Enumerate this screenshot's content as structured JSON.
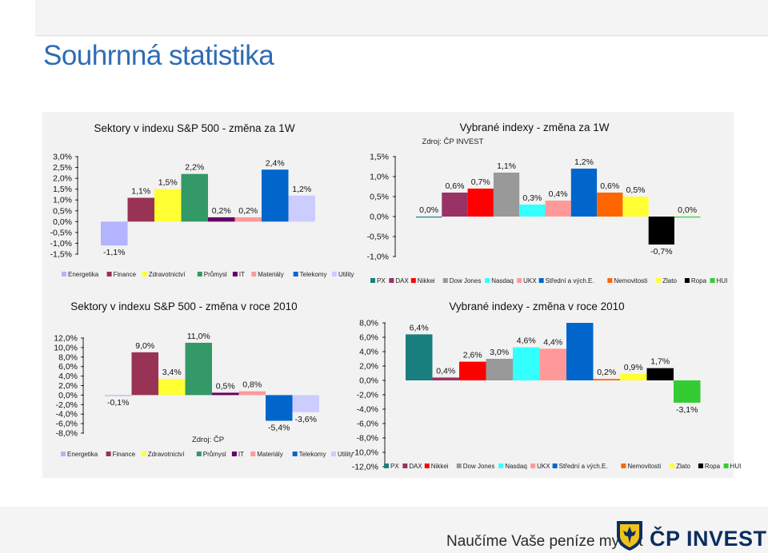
{
  "page": {
    "title": "Souhrnná statistika"
  },
  "footer": {
    "slogan": "Naučíme Vaše peníze myslet",
    "brand": "ČP INVEST"
  },
  "colors": {
    "title": "#2d6db5",
    "sectors": [
      "#b3b3ff",
      "#993355",
      "#ffff33",
      "#339966",
      "#660066",
      "#ff9999",
      "#0066cc",
      "#ccccff"
    ],
    "indices": [
      "#1a7f7f",
      "#993366",
      "#ff0000",
      "#999999",
      "#33ffff",
      "#ff9999",
      "#0066cc",
      "#ff6600",
      "#ffff33",
      "#000000",
      "#33cc33"
    ]
  },
  "chart_data": [
    {
      "id": "chart-sp500-week",
      "type": "bar",
      "title": "Sektory v indexu S&P 500 - změna za 1W",
      "subtitle": "",
      "categories": [
        "Energetika",
        "Finance",
        "Zdravotnictví",
        "Průmysl",
        "IT",
        "Materiály",
        "Telekomy",
        "Utility"
      ],
      "values": [
        -1.1,
        1.1,
        1.5,
        2.2,
        0.2,
        0.2,
        2.4,
        1.2
      ],
      "value_labels": [
        "-1,1%",
        "1,1%",
        "1,5%",
        "2,2%",
        "0,2%",
        "0,2%",
        "2,4%",
        "1,2%"
      ],
      "ylim": [
        -1.5,
        3.0
      ],
      "yticks": [
        3.0,
        2.5,
        2.0,
        1.5,
        1.0,
        0.5,
        0.0,
        -0.5,
        -1.0,
        -1.5
      ],
      "ytick_labels": [
        "3,0%",
        "2,5%",
        "2,0%",
        "1,5%",
        "1,0%",
        "0,5%",
        "0,0%",
        "-0,5%",
        "-1,0%",
        "-1,5%"
      ],
      "legend": [
        "Energetika",
        "Finance",
        "Zdravotnictví",
        "Průmysl",
        "IT",
        "Materiály",
        "Telekomy",
        "Utility"
      ],
      "legend_position": "bottom"
    },
    {
      "id": "chart-indices-week",
      "type": "bar",
      "title": "Vybrané indexy - změna za 1W",
      "subtitle": "Zdroj: ČP INVEST",
      "categories": [
        "PX",
        "DAX",
        "Nikkei",
        "Dow Jones",
        "Nasdaq",
        "UKX",
        "Střední a vých.E.",
        "Nemovitosti",
        "Zlato",
        "Ropa",
        "HUI"
      ],
      "values": [
        0.0,
        0.6,
        0.7,
        1.1,
        0.3,
        0.4,
        1.2,
        0.6,
        0.5,
        -0.7,
        0.0
      ],
      "value_labels": [
        "0,0%",
        "0,6%",
        "0,7%",
        "1,1%",
        "0,3%",
        "0,4%",
        "1,2%",
        "0,6%",
        "0,5%",
        "-0,7%",
        "0,0%"
      ],
      "ylim": [
        -1.0,
        1.5
      ],
      "yticks": [
        1.5,
        1.0,
        0.5,
        0.0,
        -0.5,
        -1.0
      ],
      "ytick_labels": [
        "1,5%",
        "1,0%",
        "0,5%",
        "0,0%",
        "-0,5%",
        "-1,0%"
      ],
      "legend": [
        "PX",
        "DAX",
        "Nikkei",
        "Dow Jones",
        "Nasdaq",
        "UKX",
        "Střední a vých.E.",
        "Nemovitosti",
        "Zlato",
        "Ropa",
        "HUI"
      ],
      "legend_position": "bottom"
    },
    {
      "id": "chart-sp500-2010",
      "type": "bar",
      "title": "Sektory v indexu S&P 500 - změna v roce 2010",
      "subtitle": "Zdroj: ČP",
      "categories": [
        "Energetika",
        "Finance",
        "Zdravotnictví",
        "Průmysl",
        "IT",
        "Materiály",
        "Telekomy",
        "Utility"
      ],
      "values": [
        -0.1,
        9.0,
        3.4,
        11.0,
        0.5,
        0.8,
        -5.4,
        -3.6
      ],
      "value_labels": [
        "-0,1%",
        "9,0%",
        "3,4%",
        "11,0%",
        "0,5%",
        "0,8%",
        "-5,4%",
        "-3,6%"
      ],
      "ylim": [
        -8.0,
        12.0
      ],
      "yticks": [
        12.0,
        10.0,
        8.0,
        6.0,
        4.0,
        2.0,
        0.0,
        -2.0,
        -4.0,
        -6.0,
        -8.0
      ],
      "ytick_labels": [
        "12,0%",
        "10,0%",
        "8,0%",
        "6,0%",
        "4,0%",
        "2,0%",
        "0,0%",
        "-2,0%",
        "-4,0%",
        "-6,0%",
        "-8,0%"
      ],
      "legend": [
        "Energetika",
        "Finance",
        "Zdravotnictví",
        "Průmysl",
        "IT",
        "Materiály",
        "Telekomy",
        "Utility"
      ],
      "legend_position": "bottom"
    },
    {
      "id": "chart-indices-2010",
      "type": "bar",
      "title": "Vybrané indexy - změna v roce 2010",
      "subtitle": "",
      "categories": [
        "PX",
        "DAX",
        "Nikkei",
        "Dow Jones",
        "Nasdaq",
        "UKX",
        "Střední a vých.E.",
        "Nemovitosti",
        "Zlato",
        "Ropa",
        "HUI"
      ],
      "values": [
        6.4,
        0.4,
        2.6,
        3.0,
        4.6,
        4.4,
        8.0,
        0.2,
        0.9,
        1.7,
        -3.1
      ],
      "value_labels": [
        "6,4%",
        "0,4%",
        "2,6%",
        "3,0%",
        "4,6%",
        "4,4%",
        "",
        "0,2%",
        "0,9%",
        "1,7%",
        "-3,1%"
      ],
      "ylim": [
        -12.0,
        8.0
      ],
      "yticks": [
        8.0,
        6.0,
        4.0,
        2.0,
        0.0,
        -2.0,
        -4.0,
        -6.0,
        -8.0,
        -10.0,
        -12.0
      ],
      "ytick_labels": [
        "8,0%",
        "6,0%",
        "4,0%",
        "2,0%",
        "0,0%",
        "-2,0%",
        "-4,0%",
        "-6,0%",
        "-8,0%",
        "-10,0%",
        "-12,0%"
      ],
      "legend": [
        "PX",
        "DAX",
        "Nikkei",
        "Dow Jones",
        "Nasdaq",
        "UKX",
        "Střední a vých.E.",
        "Nemovitosti",
        "Zlato",
        "Ropa",
        "HUI"
      ],
      "legend_position": "bottom"
    }
  ]
}
